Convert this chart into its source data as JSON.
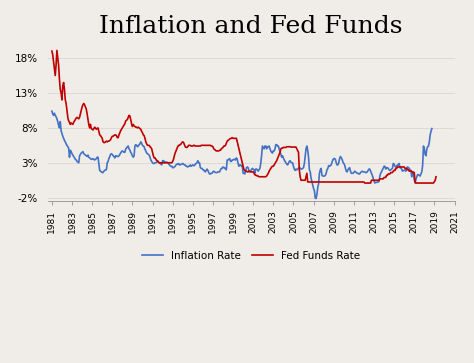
{
  "title": "Inflation and Fed Funds",
  "title_fontsize": 18,
  "background_color": "#f0ede8",
  "plot_background": "#f0ede8",
  "inflation_color": "#4472C4",
  "fedfunds_color": "#C00000",
  "line_width": 1.2,
  "ylim": [
    -2.5,
    20
  ],
  "yticks": [
    -2,
    3,
    8,
    13,
    18
  ],
  "ytick_labels": [
    "-2%",
    "3%",
    "8%",
    "13%",
    "18%"
  ],
  "legend_inflation": "Inflation Rate",
  "legend_fedfunds": "Fed Funds Rate",
  "xtick_years": [
    1981,
    1983,
    1985,
    1987,
    1989,
    1991,
    1993,
    1995,
    1997,
    1999,
    2001,
    2003,
    2005,
    2007,
    2009,
    2011,
    2013,
    2015,
    2017,
    2019,
    2021
  ],
  "start_year": 1981,
  "inflation_y": [
    10.4,
    10.0,
    9.8,
    10.1,
    9.8,
    9.6,
    9.3,
    8.9,
    8.4,
    8.0,
    8.9,
    7.6,
    7.2,
    6.8,
    6.5,
    6.2,
    6.0,
    5.7,
    5.5,
    5.3,
    5.1,
    3.8,
    4.8,
    4.6,
    4.3,
    4.1,
    3.9,
    3.7,
    3.5,
    3.4,
    3.2,
    3.1,
    3.0,
    4.0,
    4.2,
    4.4,
    4.5,
    4.6,
    4.3,
    4.2,
    4.1,
    4.0,
    3.9,
    4.1,
    3.8,
    3.7,
    3.6,
    3.5,
    3.5,
    3.6,
    3.5,
    3.4,
    3.5,
    3.6,
    3.8,
    3.8,
    2.9,
    1.9,
    1.8,
    1.7,
    1.6,
    1.6,
    1.8,
    1.9,
    2.0,
    2.0,
    3.0,
    3.2,
    3.6,
    3.9,
    4.2,
    4.3,
    4.2,
    4.0,
    3.9,
    3.7,
    4.0,
    4.0,
    3.9,
    3.9,
    4.0,
    4.2,
    4.4,
    4.6,
    4.7,
    4.6,
    4.5,
    4.5,
    5.0,
    5.1,
    5.3,
    5.4,
    5.0,
    4.8,
    4.5,
    4.3,
    4.0,
    3.8,
    4.0,
    5.4,
    5.6,
    5.5,
    5.3,
    5.4,
    5.6,
    5.7,
    6.0,
    5.8,
    5.5,
    5.4,
    5.3,
    4.9,
    4.7,
    4.4,
    4.3,
    4.2,
    4.1,
    3.8,
    3.4,
    3.2,
    3.0,
    2.9,
    2.9,
    3.0,
    3.0,
    3.1,
    3.2,
    3.1,
    3.0,
    2.9,
    2.8,
    2.7,
    3.3,
    3.3,
    3.2,
    3.1,
    3.1,
    3.1,
    3.0,
    2.9,
    2.7,
    2.6,
    2.5,
    2.5,
    2.3,
    2.3,
    2.4,
    2.5,
    2.7,
    2.8,
    2.8,
    2.9,
    2.7,
    2.7,
    2.8,
    2.8,
    2.9,
    2.8,
    2.7,
    2.7,
    2.5,
    2.5,
    2.4,
    2.5,
    2.5,
    2.7,
    2.5,
    2.6,
    2.7,
    2.6,
    2.6,
    2.8,
    2.9,
    3.0,
    3.3,
    3.0,
    3.0,
    2.3,
    2.2,
    2.2,
    2.0,
    2.0,
    1.8,
    1.7,
    1.9,
    2.1,
    1.9,
    1.6,
    1.4,
    1.4,
    1.5,
    1.5,
    1.7,
    1.8,
    1.7,
    1.6,
    1.6,
    1.6,
    1.7,
    1.7,
    1.7,
    2.0,
    2.2,
    2.2,
    2.4,
    2.3,
    2.3,
    2.1,
    2.0,
    3.4,
    3.4,
    3.5,
    3.6,
    3.2,
    3.2,
    3.4,
    3.4,
    3.5,
    3.5,
    3.4,
    3.7,
    3.5,
    2.9,
    2.5,
    2.7,
    2.7,
    2.5,
    2.6,
    1.5,
    1.5,
    1.4,
    1.8,
    2.3,
    2.4,
    2.3,
    1.8,
    1.8,
    1.9,
    2.0,
    2.2,
    2.1,
    2.0,
    1.5,
    2.1,
    2.1,
    2.0,
    1.8,
    2.0,
    2.2,
    2.9,
    4.0,
    5.4,
    5.2,
    5.0,
    5.4,
    5.4,
    5.0,
    5.3,
    5.3,
    5.4,
    5.0,
    4.7,
    4.5,
    4.4,
    4.7,
    4.7,
    5.0,
    5.6,
    5.6,
    5.4,
    5.4,
    5.0,
    4.6,
    4.2,
    3.8,
    4.0,
    3.7,
    3.4,
    3.2,
    3.0,
    2.8,
    2.7,
    2.9,
    3.2,
    3.3,
    3.1,
    3.0,
    3.0,
    2.5,
    2.1,
    1.9,
    2.1,
    2.0,
    2.1,
    2.2,
    2.4,
    2.2,
    2.1,
    2.1,
    2.2,
    2.3,
    2.9,
    4.0,
    5.0,
    5.4,
    4.8,
    3.8,
    2.0,
    1.7,
    0.8,
    0.3,
    -0.2,
    -0.7,
    -1.0,
    -2.1,
    -2.1,
    -1.5,
    -0.5,
    0.0,
    1.5,
    2.0,
    2.2,
    1.2,
    1.1,
    1.1,
    1.1,
    1.2,
    1.5,
    2.0,
    2.2,
    2.6,
    2.5,
    2.6,
    2.7,
    3.1,
    3.4,
    3.6,
    3.6,
    3.5,
    3.0,
    2.7,
    2.7,
    3.0,
    3.6,
    3.9,
    3.7,
    3.5,
    3.1,
    2.9,
    2.7,
    2.2,
    1.8,
    1.7,
    2.0,
    2.2,
    2.3,
    1.8,
    1.5,
    1.5,
    1.5,
    1.6,
    1.8,
    1.7,
    1.6,
    1.5,
    1.5,
    1.4,
    1.4,
    1.6,
    1.7,
    1.8,
    1.7,
    1.7,
    1.7,
    1.6,
    1.6,
    1.7,
    1.9,
    2.1,
    2.1,
    1.8,
    1.5,
    1.2,
    0.8,
    0.4,
    0.1,
    0.2,
    0.2,
    0.2,
    0.3,
    0.3,
    1.1,
    1.5,
    1.7,
    2.0,
    2.2,
    2.5,
    2.5,
    2.1,
    2.3,
    2.3,
    2.2,
    2.0,
    1.9,
    2.0,
    2.1,
    2.2,
    2.9,
    2.8,
    2.5,
    2.4,
    2.5,
    2.7,
    2.7,
    2.9,
    2.3,
    2.3,
    2.1,
    1.8,
    1.9,
    1.9,
    2.0,
    1.8,
    2.2,
    2.4,
    2.3,
    2.2,
    2.0,
    1.9,
    1.0,
    1.5,
    1.7,
    0.6,
    0.1,
    0.6,
    1.0,
    1.3,
    1.3,
    1.2,
    1.1,
    1.4,
    1.7,
    2.6,
    5.4,
    5.0,
    4.2,
    4.0,
    5.0,
    5.3,
    5.4,
    6.0,
    7.0,
    7.5,
    7.9
  ],
  "fedfunds_y": [
    19.0,
    18.5,
    17.5,
    16.5,
    15.5,
    17.0,
    19.1,
    18.0,
    17.0,
    15.0,
    13.5,
    13.0,
    12.0,
    14.0,
    14.5,
    13.5,
    12.0,
    11.5,
    10.5,
    9.5,
    9.0,
    8.8,
    8.5,
    8.7,
    8.6,
    8.5,
    8.8,
    9.0,
    9.2,
    9.4,
    9.5,
    9.4,
    9.3,
    9.5,
    10.0,
    10.5,
    11.0,
    11.3,
    11.5,
    11.3,
    11.0,
    10.7,
    10.0,
    9.2,
    8.5,
    8.0,
    8.5,
    7.9,
    7.8,
    7.7,
    7.9,
    8.1,
    8.0,
    7.8,
    7.9,
    8.0,
    7.5,
    7.0,
    6.9,
    6.7,
    6.5,
    6.0,
    5.9,
    5.9,
    6.0,
    6.1,
    6.0,
    6.1,
    6.1,
    6.2,
    6.3,
    6.6,
    6.8,
    6.8,
    6.9,
    7.0,
    7.0,
    6.9,
    6.6,
    6.6,
    7.0,
    7.3,
    7.6,
    7.8,
    8.0,
    8.2,
    8.4,
    8.6,
    9.0,
    9.1,
    9.2,
    9.5,
    9.8,
    9.7,
    9.2,
    8.6,
    8.2,
    8.5,
    8.3,
    8.2,
    8.1,
    8.1,
    8.0,
    8.1,
    8.0,
    7.9,
    7.8,
    7.5,
    7.3,
    7.0,
    6.9,
    6.5,
    6.0,
    5.7,
    5.5,
    5.5,
    5.5,
    5.3,
    5.2,
    5.0,
    4.5,
    4.0,
    3.7,
    3.7,
    3.5,
    3.3,
    3.3,
    3.1,
    3.0,
    3.0,
    3.0,
    3.0,
    3.0,
    3.0,
    3.0,
    3.0,
    3.0,
    3.0,
    3.0,
    3.0,
    3.0,
    3.0,
    3.0,
    3.0,
    3.2,
    3.5,
    4.0,
    4.4,
    4.7,
    5.0,
    5.3,
    5.5,
    5.5,
    5.6,
    5.7,
    5.9,
    6.0,
    5.9,
    5.6,
    5.3,
    5.2,
    5.2,
    5.3,
    5.5,
    5.5,
    5.5,
    5.4,
    5.4,
    5.4,
    5.5,
    5.5,
    5.4,
    5.4,
    5.4,
    5.4,
    5.4,
    5.4,
    5.4,
    5.5,
    5.5,
    5.5,
    5.5,
    5.5,
    5.5,
    5.5,
    5.5,
    5.5,
    5.5,
    5.5,
    5.5,
    5.4,
    5.4,
    5.3,
    5.0,
    4.9,
    4.8,
    4.7,
    4.7,
    4.7,
    4.7,
    4.8,
    4.8,
    5.0,
    5.1,
    5.2,
    5.4,
    5.4,
    5.5,
    5.8,
    6.1,
    6.2,
    6.3,
    6.4,
    6.5,
    6.5,
    6.6,
    6.5,
    6.5,
    6.5,
    6.5,
    6.5,
    6.0,
    5.5,
    5.0,
    4.5,
    4.0,
    3.5,
    3.0,
    2.5,
    2.0,
    1.9,
    1.8,
    1.8,
    1.7,
    1.7,
    1.8,
    1.7,
    1.7,
    1.7,
    1.7,
    1.7,
    1.5,
    1.3,
    1.2,
    1.2,
    1.1,
    1.1,
    1.0,
    1.0,
    1.0,
    1.0,
    1.0,
    1.0,
    1.0,
    1.0,
    1.0,
    1.1,
    1.3,
    1.5,
    1.8,
    2.0,
    2.2,
    2.4,
    2.5,
    2.5,
    2.7,
    2.9,
    3.1,
    3.3,
    3.6,
    3.9,
    4.2,
    4.5,
    5.0,
    5.1,
    5.1,
    5.2,
    5.2,
    5.2,
    5.2,
    5.3,
    5.3,
    5.3,
    5.3,
    5.3,
    5.25,
    5.25,
    5.25,
    5.25,
    5.25,
    5.25,
    5.25,
    5.0,
    4.75,
    4.5,
    2.0,
    1.0,
    0.5,
    0.5,
    0.5,
    0.5,
    0.5,
    0.5,
    1.0,
    1.5,
    0.25,
    0.25,
    0.25,
    0.25,
    0.25,
    0.25,
    0.25,
    0.25,
    0.25,
    0.25,
    0.25,
    0.25,
    0.25,
    0.25,
    0.25,
    0.25,
    0.25,
    0.25,
    0.25,
    0.25,
    0.25,
    0.25,
    0.25,
    0.25,
    0.25,
    0.25,
    0.25,
    0.25,
    0.25,
    0.25,
    0.25,
    0.25,
    0.25,
    0.25,
    0.25,
    0.25,
    0.25,
    0.25,
    0.25,
    0.25,
    0.25,
    0.25,
    0.25,
    0.25,
    0.25,
    0.25,
    0.25,
    0.25,
    0.25,
    0.25,
    0.25,
    0.25,
    0.25,
    0.25,
    0.25,
    0.25,
    0.25,
    0.25,
    0.25,
    0.25,
    0.25,
    0.25,
    0.25,
    0.25,
    0.25,
    0.25,
    0.25,
    0.25,
    0.1,
    0.1,
    0.1,
    0.1,
    0.1,
    0.1,
    0.1,
    0.1,
    0.5,
    0.5,
    0.5,
    0.5,
    0.5,
    0.5,
    0.5,
    0.5,
    0.5,
    0.5,
    0.7,
    0.7,
    0.7,
    0.7,
    0.7,
    0.9,
    0.9,
    0.9,
    1.2,
    1.2,
    1.4,
    1.4,
    1.4,
    1.6,
    1.6,
    1.6,
    1.8,
    1.9,
    1.9,
    2.2,
    2.2,
    2.4,
    2.4,
    2.4,
    2.4,
    2.4,
    2.4,
    2.4,
    2.4,
    2.4,
    2.2,
    2.2,
    2.2,
    2.0,
    2.0,
    1.8,
    1.8,
    1.8,
    1.8,
    1.6,
    1.6,
    1.6,
    0.25,
    0.1,
    0.1,
    0.1,
    0.1,
    0.1,
    0.1,
    0.1,
    0.1,
    0.1,
    0.1,
    0.1,
    0.1,
    0.1,
    0.1,
    0.1,
    0.1,
    0.1,
    0.1,
    0.1,
    0.1,
    0.1,
    0.1,
    0.3,
    0.5,
    1.0
  ]
}
